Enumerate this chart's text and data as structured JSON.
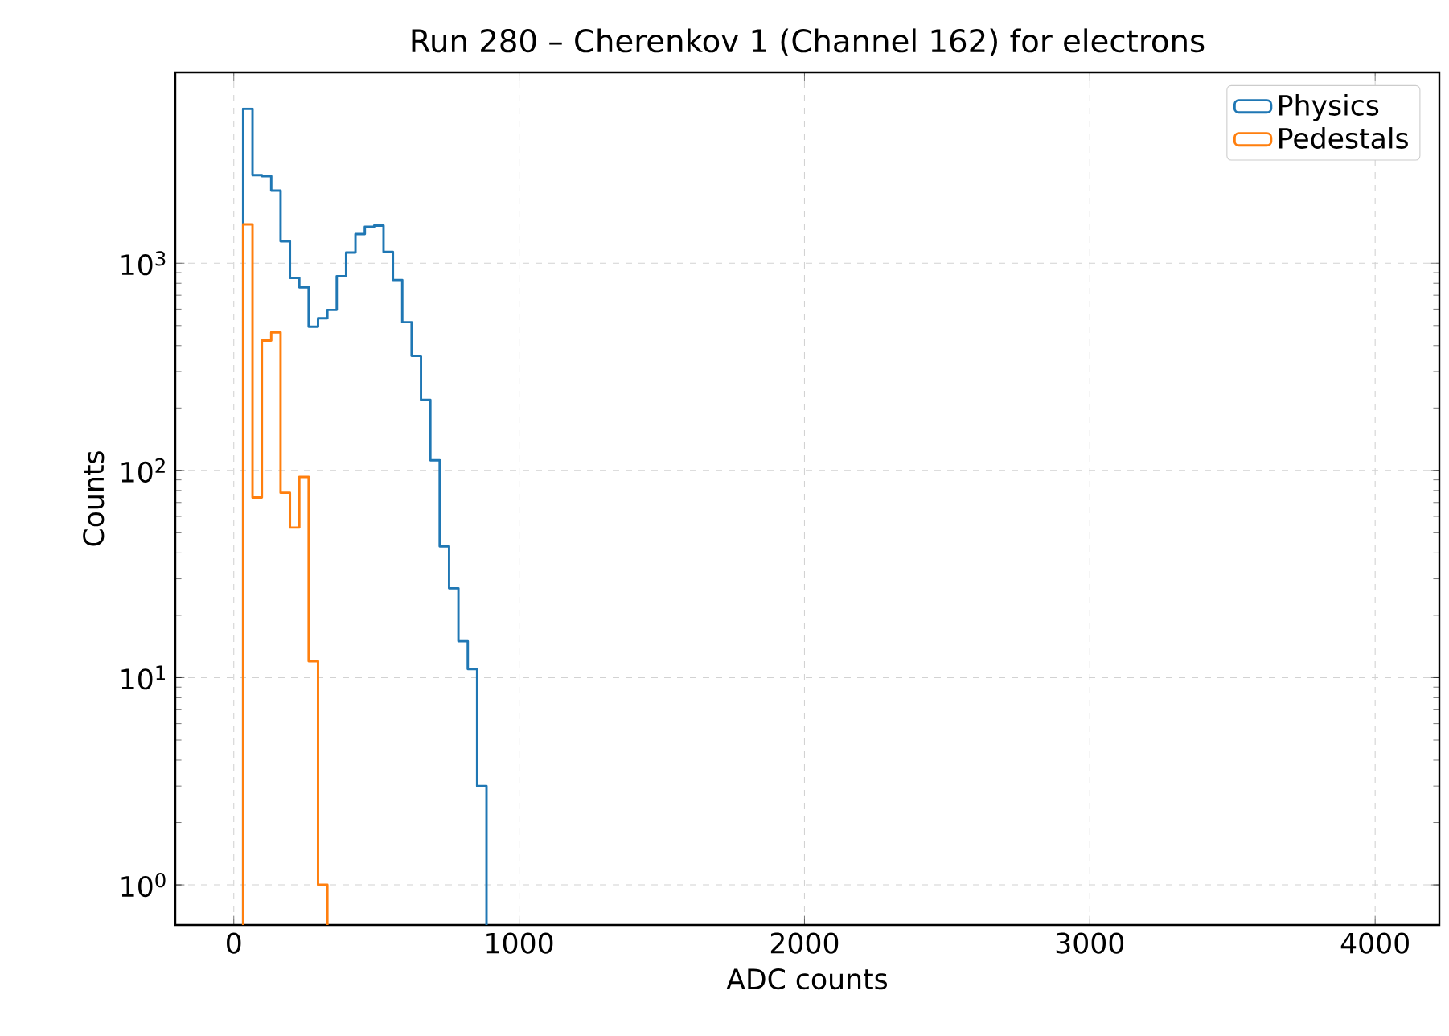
{
  "chart_data": {
    "type": "histogram",
    "title": "Run 280 – Cherenkov 1 (Channel 162) for electrons",
    "xlabel": "ADC counts",
    "ylabel": "Counts",
    "log": "y",
    "grid": true,
    "legend": "top right",
    "xlim": [
      -205,
      4225
    ],
    "xticks": [
      0,
      1000,
      2000,
      3000,
      4000
    ],
    "ylim": [
      0.64,
      8340
    ],
    "yticks": [
      {
        "value": 1,
        "label": "10$^{0}$"
      },
      {
        "value": 10,
        "label": "10$^{1}$"
      },
      {
        "value": 100,
        "label": "10$^{2}$"
      },
      {
        "value": 1000,
        "label": "10$^{3}$"
      }
    ],
    "bins": [
      32.8,
      65.6,
      98.4,
      131.2,
      164,
      196.8,
      229.6,
      262.4,
      295.2,
      328,
      360.8,
      393.6,
      426.4,
      459.2,
      492,
      524.8,
      557.6,
      590.4,
      623.2,
      656,
      688.8,
      721.6,
      754.4,
      787.2,
      820,
      852.8,
      885.6
    ],
    "series": [
      {
        "name": "Physics",
        "color": "#1f77b4",
        "values": [
          5560,
          2660,
          2630,
          2240,
          1275,
          850,
          765,
          494,
          542,
          595,
          866,
          1126,
          1383,
          1500,
          1520,
          1133,
          830,
          519,
          357,
          219,
          112,
          43,
          27,
          15,
          11,
          3
        ]
      },
      {
        "name": "Pedestals",
        "color": "#ff7f0e",
        "bins": [
          32.8,
          65.6,
          98.4,
          131.2,
          164,
          196.8,
          229.6,
          262.4,
          295.2,
          328
        ],
        "values": [
          1540,
          74,
          423,
          464,
          78,
          53,
          93,
          12,
          1
        ]
      }
    ]
  }
}
